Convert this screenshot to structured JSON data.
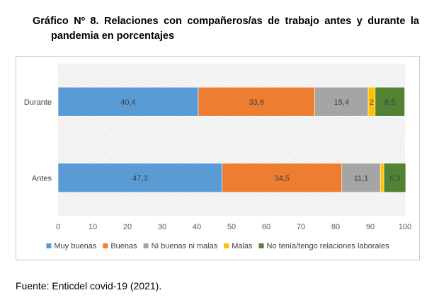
{
  "title_line1": "Gráfico Nº 8. Relaciones con compañeros/as de trabajo antes y durante la",
  "title_line2": "pandemia en porcentajes",
  "source": "Fuente: Enticdel covid-19 (2021).",
  "chart_data": {
    "type": "bar",
    "orientation": "horizontal",
    "stacked": true,
    "categories": [
      "Durante",
      "Antes"
    ],
    "series": [
      {
        "name": "Muy buenas",
        "color": "#5b9bd5",
        "values": [
          40.4,
          47.3
        ],
        "labels": [
          "40,4",
          "47,3"
        ]
      },
      {
        "name": "Buenas",
        "color": "#ed7d31",
        "values": [
          33.6,
          34.5
        ],
        "labels": [
          "33,6",
          "34,5"
        ]
      },
      {
        "name": "Ni buenas ni malas",
        "color": "#a5a5a5",
        "values": [
          15.4,
          11.1
        ],
        "labels": [
          "15,4",
          "11,1"
        ]
      },
      {
        "name": "Malas",
        "color": "#ffc000",
        "values": [
          2,
          1
        ],
        "labels": [
          "2",
          ""
        ]
      },
      {
        "name": "No tenía/tengo relaciones laborales",
        "color": "#548235",
        "values": [
          8.5,
          6.3
        ],
        "labels": [
          "8,5",
          "6,3"
        ]
      }
    ],
    "xlim": [
      0,
      100
    ],
    "xticks": [
      "0",
      "10",
      "20",
      "30",
      "40",
      "50",
      "60",
      "70",
      "80",
      "90",
      "100"
    ],
    "legend_position": "bottom"
  }
}
